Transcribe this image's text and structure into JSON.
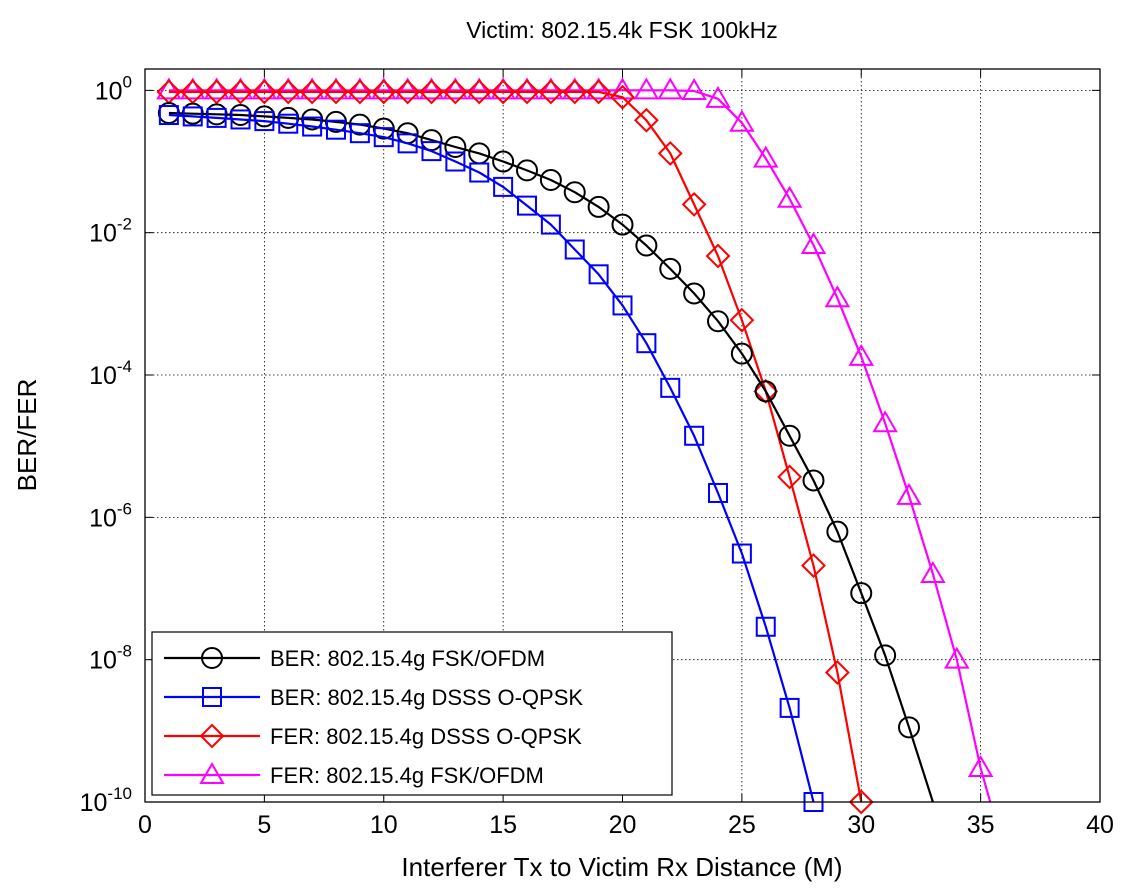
{
  "chart_data": {
    "type": "line",
    "title": "Victim: 802.15.4k FSK 100kHz",
    "xlabel": "Interferer Tx to Victim Rx Distance (M)",
    "ylabel": "BER/FER",
    "xlim": [
      0,
      40
    ],
    "ylim_exponent": [
      -10,
      0.3
    ],
    "y_scale": "log",
    "grid": true,
    "legend_position": "bottom-left",
    "x_ticks": [
      "0",
      "5",
      "10",
      "15",
      "20",
      "25",
      "30",
      "35",
      "40"
    ],
    "y_ticks": [
      {
        "base": "10",
        "exp": "0",
        "value": 0
      },
      {
        "base": "10",
        "exp": "-2",
        "value": -2
      },
      {
        "base": "10",
        "exp": "-4",
        "value": -4
      },
      {
        "base": "10",
        "exp": "-6",
        "value": -6
      },
      {
        "base": "10",
        "exp": "-8",
        "value": -8
      },
      {
        "base": "10",
        "exp": "-10",
        "value": -10
      }
    ],
    "series": [
      {
        "name": "BER: 802.15.4g FSK/OFDM",
        "color": "#000000",
        "marker": "circle",
        "x": [
          1,
          2,
          3,
          4,
          5,
          6,
          7,
          8,
          9,
          10,
          11,
          12,
          13,
          14,
          15,
          16,
          17,
          18,
          19,
          20,
          21,
          22,
          23,
          24,
          25,
          26,
          27,
          28,
          29,
          30,
          31,
          32,
          33
        ],
        "y": [
          0.48,
          0.47,
          0.46,
          0.45,
          0.43,
          0.41,
          0.39,
          0.36,
          0.33,
          0.29,
          0.25,
          0.2,
          0.16,
          0.13,
          0.1,
          0.075,
          0.055,
          0.037,
          0.023,
          0.013,
          0.0066,
          0.0031,
          0.0014,
          0.00057,
          0.0002,
          5.9e-05,
          1.4e-05,
          3.3e-06,
          6.3e-07,
          8.6e-08,
          1.15e-08,
          1.12e-09,
          1e-10
        ]
      },
      {
        "name": "BER: 802.15.4g DSSS O-QPSK",
        "color": "#0000ff",
        "marker": "square",
        "x": [
          1,
          2,
          3,
          4,
          5,
          6,
          7,
          8,
          9,
          10,
          11,
          12,
          13,
          14,
          15,
          16,
          17,
          18,
          19,
          20,
          21,
          22,
          23,
          24,
          25,
          26,
          27,
          28
        ],
        "y": [
          0.45,
          0.43,
          0.41,
          0.39,
          0.37,
          0.34,
          0.31,
          0.28,
          0.25,
          0.22,
          0.18,
          0.14,
          0.1,
          0.07,
          0.044,
          0.024,
          0.013,
          0.0058,
          0.0026,
          0.00095,
          0.00028,
          6.6e-05,
          1.4e-05,
          2.2e-06,
          3.1e-07,
          2.9e-08,
          2.1e-09,
          1e-10
        ]
      },
      {
        "name": "FER: 802.15.4g DSSS O-QPSK",
        "color": "#ff0000",
        "marker": "diamond",
        "x": [
          1,
          2,
          3,
          4,
          5,
          6,
          7,
          8,
          9,
          10,
          11,
          12,
          13,
          14,
          15,
          16,
          17,
          18,
          19,
          20,
          21,
          22,
          23,
          24,
          25,
          26,
          27,
          28,
          29,
          30
        ],
        "y": [
          0.95,
          0.95,
          0.95,
          0.95,
          0.95,
          0.95,
          0.95,
          0.95,
          0.95,
          0.95,
          0.95,
          0.95,
          0.95,
          0.95,
          0.95,
          0.95,
          0.95,
          0.95,
          0.95,
          0.8,
          0.38,
          0.13,
          0.025,
          0.0047,
          0.00059,
          5.9e-05,
          3.7e-06,
          2.1e-07,
          6.6e-09,
          1e-10
        ]
      },
      {
        "name": "FER: 802.15.4g FSK/OFDM",
        "color": "#ff00ff",
        "marker": "triangle",
        "x": [
          1,
          2,
          3,
          4,
          5,
          6,
          7,
          8,
          9,
          10,
          11,
          12,
          13,
          14,
          15,
          16,
          17,
          18,
          19,
          20,
          21,
          22,
          23,
          24,
          25,
          26,
          27,
          28,
          29,
          30,
          31,
          32,
          33,
          34,
          35,
          35.4
        ],
        "y": [
          1,
          1,
          1,
          1,
          1,
          1,
          1,
          1,
          1,
          1,
          1,
          1,
          1,
          1,
          1,
          1,
          1,
          1,
          1,
          1,
          1,
          1,
          0.98,
          0.76,
          0.35,
          0.11,
          0.03,
          0.0067,
          0.0012,
          0.00018,
          2.1e-05,
          2e-06,
          1.6e-07,
          1e-08,
          3e-10,
          1e-10
        ]
      }
    ]
  }
}
